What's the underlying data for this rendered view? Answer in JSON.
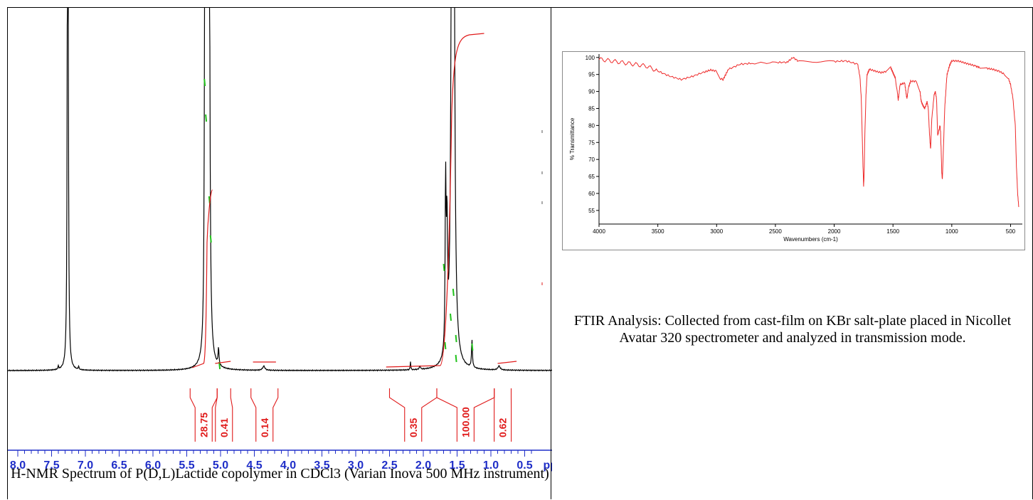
{
  "colors": {
    "spectrum": "#000000",
    "integral": "#e01b1b",
    "peak_marks": "#21c21b",
    "axis": "#1f2ec8",
    "ir_line": "#ee2a2a",
    "ir_axis": "#000000"
  },
  "nmr": {
    "caption": "H-NMR Spectrum of P(D,L)Lactide copolymer in CDCl3 (Varian Inova 500 MHz instrument)",
    "chart_data": {
      "type": "line",
      "x_axis": {
        "ticks": [
          "8.0",
          "7.5",
          "7.0",
          "6.5",
          "6.0",
          "5.5",
          "5.0",
          "4.5",
          "4.0",
          "3.5",
          "3.0",
          "2.5",
          "2.0",
          "1.5",
          "1.0",
          "0.5"
        ],
        "unit_label": "ppi",
        "reversed": true,
        "range": [
          8.0,
          0.4
        ]
      },
      "peaks": [
        {
          "ppm": 7.26,
          "height": "off-scale"
        },
        {
          "ppm": 5.18,
          "height": "off-scale"
        },
        {
          "ppm": 5.03,
          "height": 0.05
        },
        {
          "ppm": 4.36,
          "height": 0.012
        },
        {
          "ppm": 2.2,
          "height": 0.02
        },
        {
          "ppm": 1.67,
          "height": 0.5
        },
        {
          "ppm": 1.57,
          "height": "off-scale"
        },
        {
          "ppm": 1.28,
          "height": 0.08
        },
        {
          "ppm": 0.88,
          "height": 0.01
        }
      ],
      "integrals": [
        {
          "from": 5.45,
          "to": 5.05,
          "value": "28.75"
        },
        {
          "from": 5.05,
          "to": 4.85,
          "value": "0.41"
        },
        {
          "from": 4.55,
          "to": 4.15,
          "value": "0.14"
        },
        {
          "from": 2.5,
          "to": 1.8,
          "value": "0.35"
        },
        {
          "from": 1.8,
          "to": 0.95,
          "value": "100.00"
        },
        {
          "from": 0.95,
          "to": 0.7,
          "value": "0.62"
        }
      ]
    }
  },
  "ir": {
    "caption": "FTIR Analysis: Collected from cast-film on KBr salt-plate placed in Nicollet Avatar 320 spectrometer and analyzed in transmission mode.",
    "chart_data": {
      "type": "line",
      "xlabel": "Wavenumbers (cm-1)",
      "ylabel": "% Transmittance",
      "x_ticks": [
        "4000",
        "3500",
        "3000",
        "2500",
        "2000",
        "1500",
        "1000",
        "500"
      ],
      "y_ticks": [
        "100",
        "95",
        "90",
        "85",
        "80",
        "75",
        "70",
        "65",
        "60",
        "55"
      ],
      "xlim": [
        4000,
        400
      ],
      "ylim": [
        51,
        101
      ],
      "series": [
        {
          "x": [
            4000,
            3900,
            3800,
            3700,
            3600,
            3500,
            3400,
            3300,
            3200,
            3100,
            3050,
            3000,
            2970,
            2945,
            2900,
            2800,
            2700,
            2500,
            2400,
            2350,
            2300,
            2000,
            1900,
            1800,
            1780,
            1770,
            1760,
            1755,
            1750,
            1745,
            1740,
            1730,
            1720,
            1700,
            1650,
            1600,
            1550,
            1520,
            1500,
            1480,
            1455,
            1450,
            1440,
            1400,
            1385,
            1380,
            1370,
            1350,
            1300,
            1270,
            1260,
            1240,
            1230,
            1210,
            1200,
            1190,
            1185,
            1180,
            1170,
            1150,
            1140,
            1130,
            1120,
            1100,
            1095,
            1090,
            1085,
            1080,
            1060,
            1045,
            1040,
            1020,
            1000,
            950,
            900,
            850,
            800,
            760,
            700,
            650,
            600,
            550,
            520,
            500,
            480,
            460,
            450,
            440,
            430
          ],
          "y": [
            99.5,
            99,
            98.5,
            98,
            97.5,
            96,
            94.5,
            93.5,
            94.5,
            95.8,
            96.3,
            96,
            93.8,
            93.5,
            96.5,
            98,
            98.3,
            98.5,
            98.6,
            100,
            98.8,
            98.8,
            99,
            98,
            94,
            88,
            75,
            68,
            62,
            66,
            76,
            89,
            95,
            96.5,
            96,
            95.5,
            96,
            97,
            95.5,
            94,
            87.5,
            89,
            92,
            92.5,
            88.5,
            88,
            91,
            93,
            93,
            90,
            87,
            85.5,
            85,
            87,
            85,
            78,
            75,
            73,
            82,
            89,
            90,
            88,
            77,
            80,
            78,
            72,
            66,
            64,
            85,
            93,
            95,
            97.5,
            99,
            99,
            98.5,
            98,
            97.5,
            97,
            96.8,
            96.5,
            96,
            95,
            94,
            92,
            88,
            80,
            68,
            60,
            56
          ]
        }
      ]
    }
  }
}
